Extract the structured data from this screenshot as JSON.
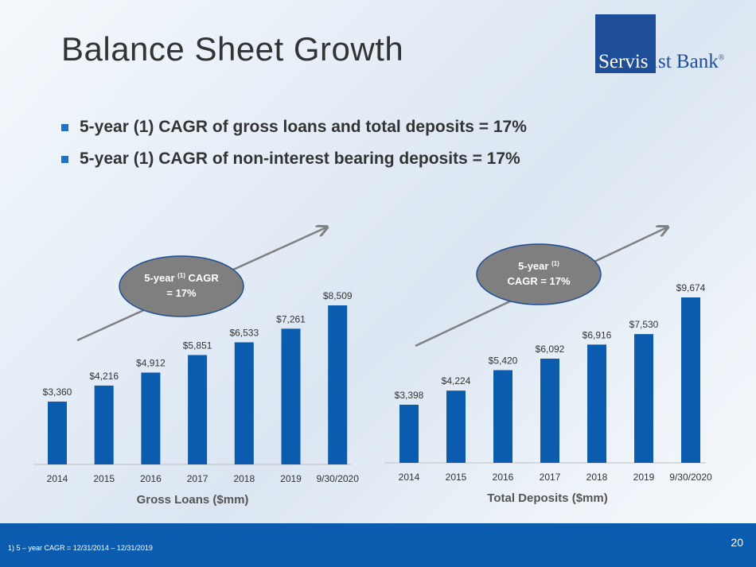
{
  "title": "Balance Sheet Growth",
  "logo": {
    "part1": "Servis",
    "part2": "1st Bank",
    "mark": "®"
  },
  "bullets": [
    "5-year (1) CAGR of gross loans and total deposits = 17%",
    "5-year (1) CAGR of non-interest bearing deposits = 17%"
  ],
  "footnote": "1)      5 – year CAGR = 12/31/2014 – 12/31/2019",
  "page_number": "20",
  "colors": {
    "bar": "#0b5cae",
    "bubble": "#7f7f7f",
    "bubble_border": "#1f4e99",
    "arrow": "#808080",
    "footer": "#0b5cae"
  },
  "chart_data": [
    {
      "type": "bar",
      "title": "Gross Loans ($mm)",
      "categories": [
        "2014",
        "2015",
        "2016",
        "2017",
        "2018",
        "2019",
        "9/30/2020"
      ],
      "values": [
        3360,
        4216,
        4912,
        5851,
        6533,
        7261,
        8509
      ],
      "labels": [
        "$3,360",
        "$4,216",
        "$4,912",
        "$5,851",
        "$6,533",
        "$7,261",
        "$8,509"
      ],
      "callout": {
        "line1": "5-year",
        "sup": "(1)",
        "line1b": "CAGR",
        "line2": "= 17%"
      },
      "ylim": [
        0,
        10000
      ]
    },
    {
      "type": "bar",
      "title": "Total Deposits ($mm)",
      "categories": [
        "2014",
        "2015",
        "2016",
        "2017",
        "2018",
        "2019",
        "9/30/2020"
      ],
      "values": [
        3398,
        4224,
        5420,
        6092,
        6916,
        7530,
        9674
      ],
      "labels": [
        "$3,398",
        "$4,224",
        "$5,420",
        "$6,092",
        "$6,916",
        "$7,530",
        "$9,674"
      ],
      "callout": {
        "line1": "5-year",
        "sup": "(1)",
        "line1b": "",
        "line2": "CAGR = 17%"
      },
      "ylim": [
        0,
        10000
      ]
    }
  ]
}
